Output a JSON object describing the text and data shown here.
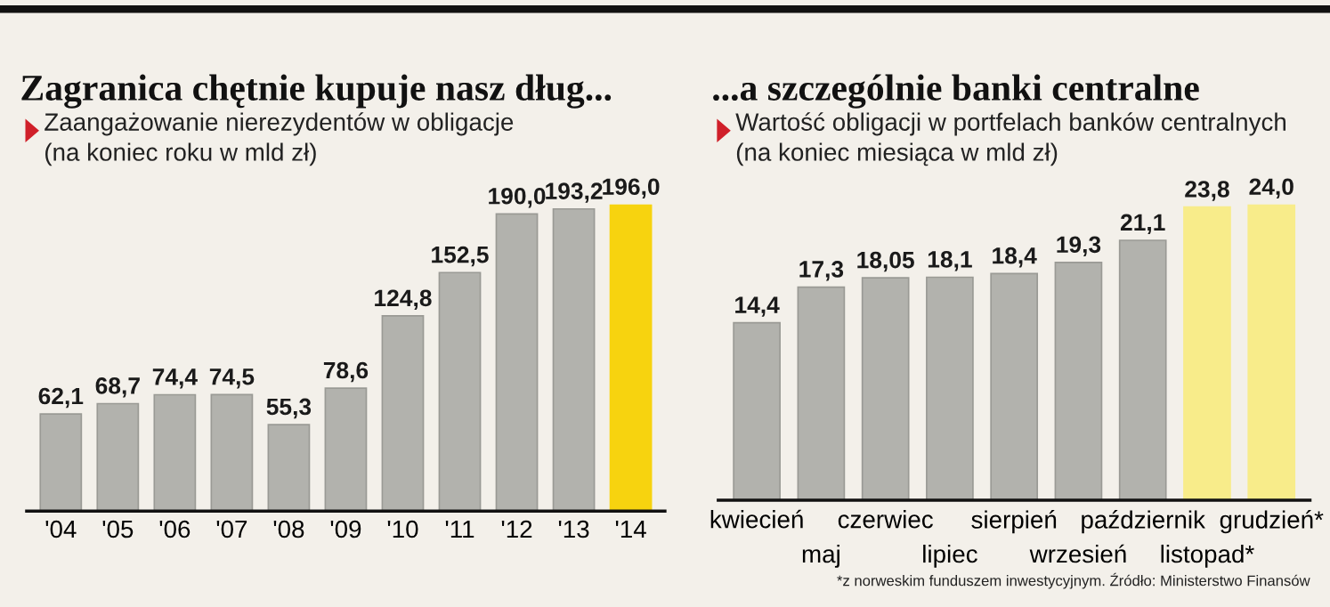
{
  "chart_data": [
    {
      "type": "bar",
      "title": "Zagranica chętnie kupuje nasz dług...",
      "subtitle": "Zaangażowanie nierezydentów w obligacje\n(na koniec roku w mld zł)",
      "categories": [
        "'04",
        "'05",
        "'06",
        "'07",
        "'08",
        "'09",
        "'10",
        "'11",
        "'12",
        "'13",
        "'14"
      ],
      "values": [
        62.1,
        68.7,
        74.4,
        74.5,
        55.3,
        78.6,
        124.8,
        152.5,
        190.0,
        193.2,
        196.0
      ],
      "value_labels": [
        "62,1",
        "68,7",
        "74,4",
        "74,5",
        "55,3",
        "78,6",
        "124,8",
        "152,5",
        "190,0",
        "193,2",
        "196,0"
      ],
      "colors": [
        "#b2b2ad",
        "#b2b2ad",
        "#b2b2ad",
        "#b2b2ad",
        "#b2b2ad",
        "#b2b2ad",
        "#b2b2ad",
        "#b2b2ad",
        "#b2b2ad",
        "#b2b2ad",
        "#f7d30f"
      ],
      "tick_labels": "x",
      "grid": false,
      "legend": false
    },
    {
      "type": "bar",
      "title": "...a szczególnie banki centralne",
      "subtitle": "Wartość obligacji w portfelach banków centralnych\n(na koniec miesiąca w mld zł)",
      "categories": [
        "kwiecień",
        "maj",
        "czerwiec",
        "lipiec",
        "sierpień",
        "wrzesień",
        "październik",
        "listopad*",
        "grudzień*"
      ],
      "values": [
        14.4,
        17.3,
        18.05,
        18.1,
        18.4,
        19.3,
        21.1,
        23.8,
        24.0
      ],
      "value_labels": [
        "14,4",
        "17,3",
        "18,05",
        "18,1",
        "18,4",
        "19,3",
        "21,1",
        "23,8",
        "24,0"
      ],
      "colors": [
        "#b2b2ad",
        "#b2b2ad",
        "#b2b2ad",
        "#b2b2ad",
        "#b2b2ad",
        "#b2b2ad",
        "#b2b2ad",
        "#f8ec8a",
        "#f8ec8a"
      ],
      "tick_labels": "x",
      "grid": false,
      "legend": false,
      "annotations": [
        "*z norweskim funduszem inwestycyjnym. Źródło: Ministerstwo Finansów"
      ]
    }
  ]
}
